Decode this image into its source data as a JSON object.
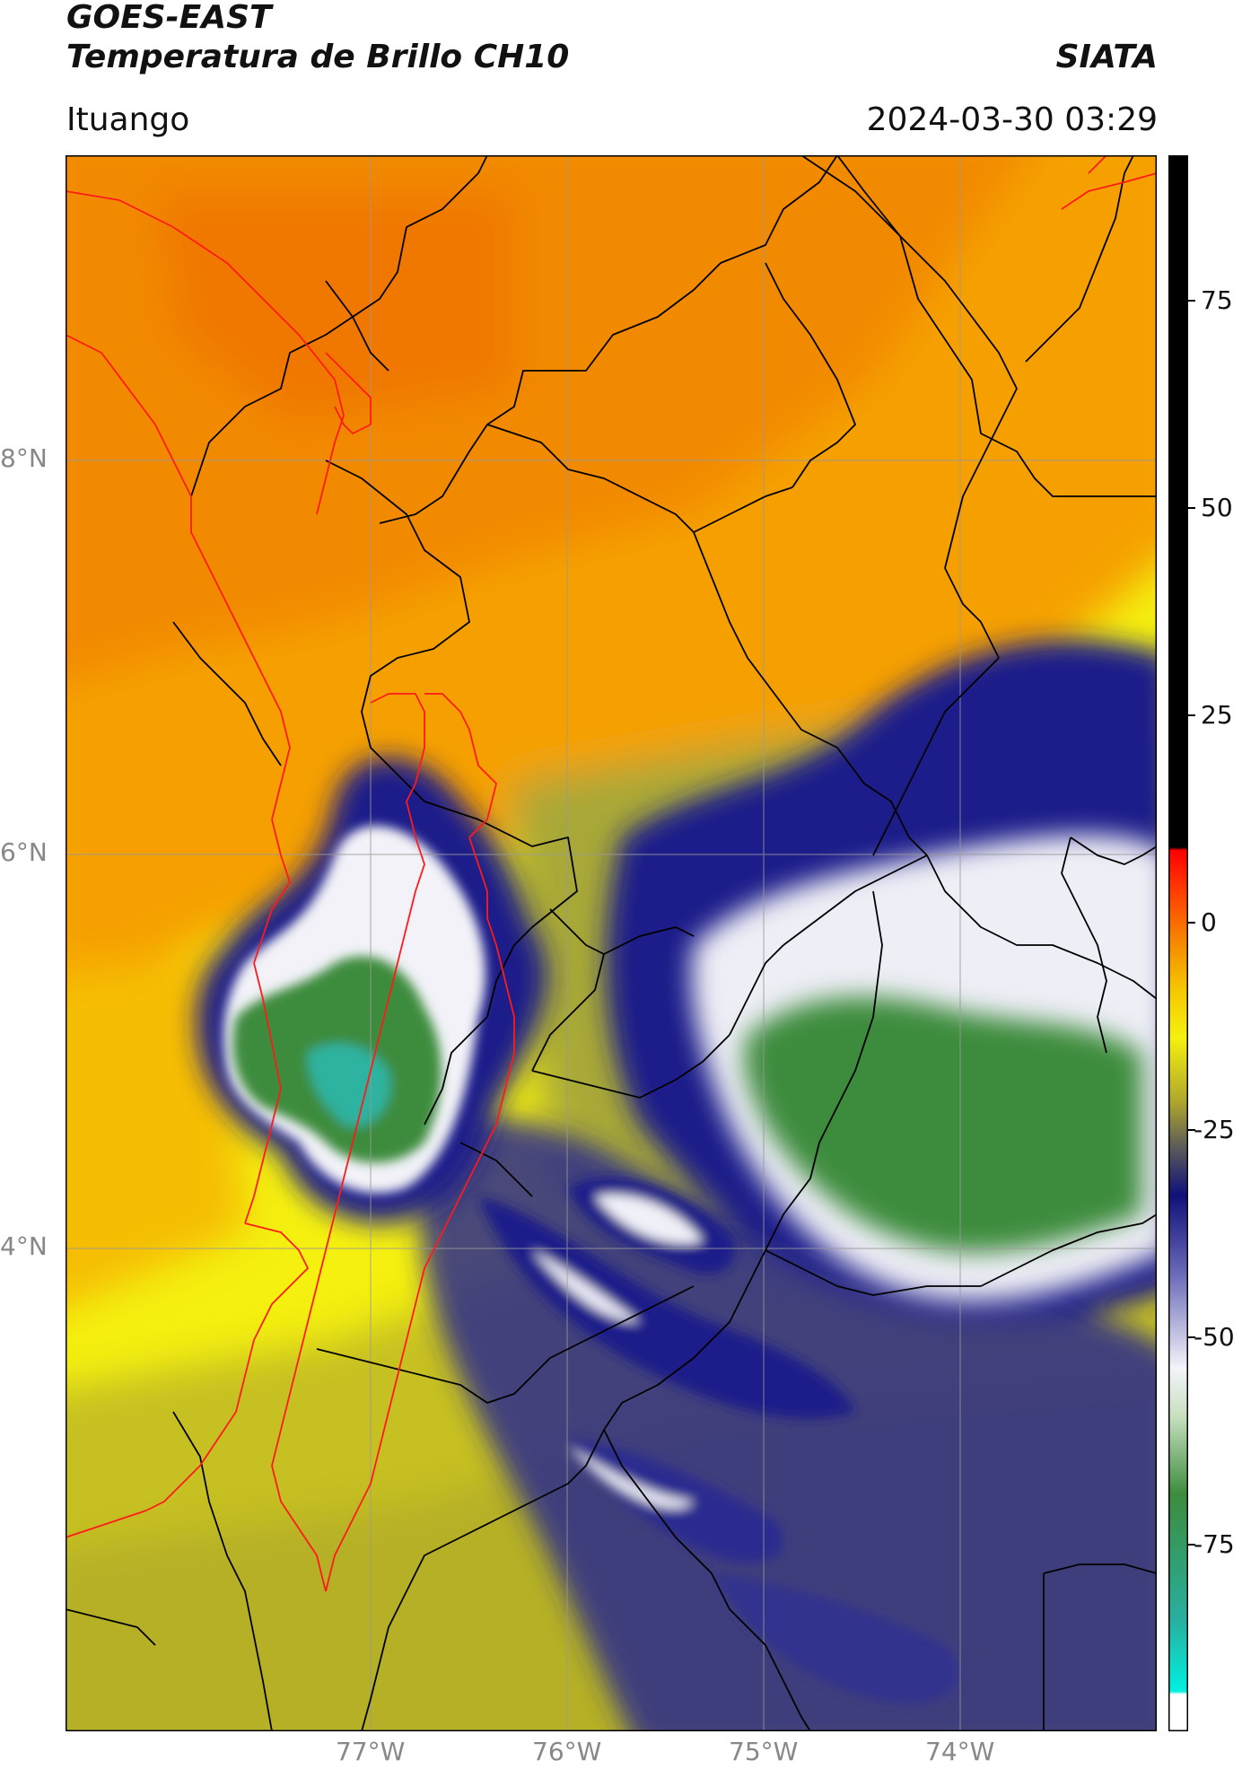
{
  "header": {
    "satellite": "GOES-EAST",
    "product": "Temperatura de Brillo CH10",
    "agency": "SIATA",
    "location": "Ituango",
    "timestamp": "2024-03-30 03:29"
  },
  "map": {
    "lat_labels": [
      "8°N",
      "6°N",
      "4°N"
    ],
    "lon_labels": [
      "77°W",
      "76°W",
      "75°W",
      "74°W"
    ],
    "colors": {
      "cold_cyan": "#1fd3c0",
      "green": "#3c8c3c",
      "white": "#f4f4fa",
      "navy": "#1a1a8a",
      "olive": "#b8b820",
      "yellow": "#f5f010",
      "orange": "#f5a000",
      "deep_orange": "#f27800",
      "black": "#000000",
      "border_black": "#000000",
      "border_red": "#ff1a1a",
      "grid": "#999999"
    }
  },
  "colorbar": {
    "ticks": [
      "75",
      "50",
      "25",
      "0",
      "-25",
      "-50",
      "-75"
    ]
  }
}
